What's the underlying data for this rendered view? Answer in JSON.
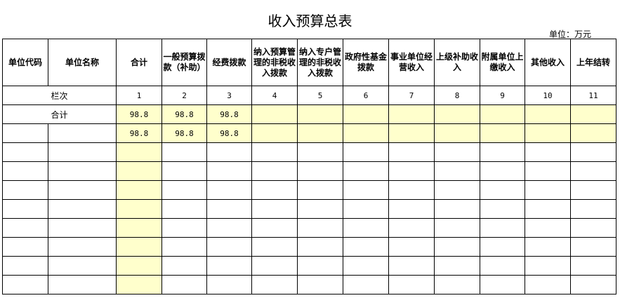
{
  "title": "收入预算总表",
  "unit": "单位：万元",
  "headers": [
    "单位代码",
    "单位名称",
    "合计",
    "一般预算拨款（补助）",
    "经费拨款",
    "纳入预算管理的非税收入拨款",
    "纳入专户管理的非税收入拨款",
    "政府性基金拨款",
    "事业单位经营收入",
    "上级补助收入",
    "附属单位上缴收入",
    "其他收入",
    "上年结转"
  ],
  "column_index_label": "栏次",
  "column_numbers": [
    "1",
    "2",
    "3",
    "4",
    "5",
    "6",
    "7",
    "8",
    "9",
    "10",
    "11"
  ],
  "total_row": {
    "label": "合计",
    "values": [
      "98.8",
      "98.8",
      "98.8",
      "",
      "",
      "",
      "",
      "",
      "",
      "",
      ""
    ]
  },
  "rows": [
    {
      "code": "",
      "name": "",
      "values": [
        "98.8",
        "98.8",
        "98.8",
        "",
        "",
        "",
        "",
        "",
        "",
        "",
        ""
      ]
    }
  ],
  "empty_row_count": 8,
  "highlight_color": "#ffffcc"
}
